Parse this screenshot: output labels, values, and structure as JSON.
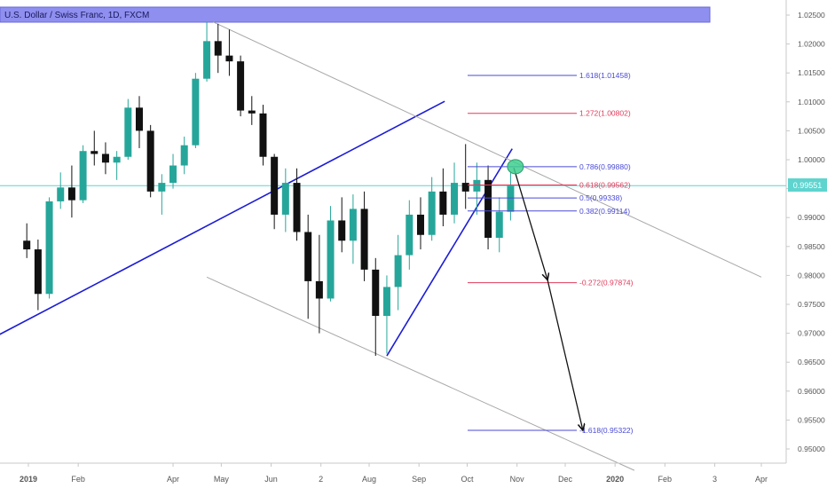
{
  "chart_data": {
    "type": "candlestick",
    "title": "U.S. Dollar / Swiss Franc, 1D, FXCM",
    "current_price": "0.99551",
    "y_ticks": [
      "1.02500",
      "1.02000",
      "1.01500",
      "1.01000",
      "1.00500",
      "1.00000",
      "0.99500",
      "0.99000",
      "0.98500",
      "0.98000",
      "0.97500",
      "0.97000",
      "0.96500",
      "0.96000",
      "0.95500",
      "0.95000"
    ],
    "x_ticks": [
      {
        "label": "2019",
        "date": "2019-01-01"
      },
      {
        "label": "Feb",
        "date": "2019-02-01"
      },
      {
        "label": "Apr",
        "date": "2019-04-01"
      },
      {
        "label": "May",
        "date": "2019-05-01"
      },
      {
        "label": "Jun",
        "date": "2019-06-01"
      },
      {
        "label": "2",
        "date": "2019-07-02"
      },
      {
        "label": "Aug",
        "date": "2019-08-01"
      },
      {
        "label": "Sep",
        "date": "2019-09-01"
      },
      {
        "label": "Oct",
        "date": "2019-10-01"
      },
      {
        "label": "Nov",
        "date": "2019-11-01"
      },
      {
        "label": "Dec",
        "date": "2019-12-01"
      },
      {
        "label": "2020",
        "date": "2020-01-01"
      },
      {
        "label": "Feb",
        "date": "2020-02-01"
      },
      {
        "label": "3",
        "date": "2020-03-03"
      },
      {
        "label": "Apr",
        "date": "2020-04-01"
      }
    ],
    "fib_levels": [
      {
        "label": "1.618(1.01458)",
        "value": 1.01458,
        "color": "#4a4ad6"
      },
      {
        "label": "1.272(1.00802)",
        "value": 1.00802,
        "color": "#e03a5a"
      },
      {
        "label": "0.786(0.99880)",
        "value": 0.9988,
        "color": "#4a4ad6"
      },
      {
        "label": "0.618(0.99562)",
        "value": 0.99562,
        "color": "#e03a5a"
      },
      {
        "label": "0.5(0.99338)",
        "value": 0.99338,
        "color": "#4a4ad6"
      },
      {
        "label": "0.382(0.99114)",
        "value": 0.99114,
        "color": "#4a4ad6"
      },
      {
        "label": "-0.272(0.97874)",
        "value": 0.97874,
        "color": "#e03a5a"
      },
      {
        "label": "-1.618(0.95322)",
        "value": 0.95322,
        "color": "#4a4ad6"
      }
    ],
    "trendlines": [
      {
        "name": "long-uptrend",
        "color": "#1c1cd6",
        "from": {
          "date": "2018-12-10",
          "price": 0.9692
        },
        "to": {
          "date": "2019-09-17",
          "price": 1.0101
        }
      },
      {
        "name": "aug-oct-uptrend",
        "color": "#1c1cd6",
        "from": {
          "date": "2019-08-12",
          "price": 0.9661
        },
        "to": {
          "date": "2019-10-29",
          "price": 1.0019
        }
      },
      {
        "name": "channel-upper",
        "color": "#a8a8a8",
        "from": {
          "date": "2019-04-26",
          "price": 1.0238
        },
        "to": {
          "date": "2020-04-01",
          "price": 0.9797
        }
      },
      {
        "name": "channel-lower",
        "color": "#a8a8a8",
        "from": {
          "date": "2019-04-22",
          "price": 0.9797
        },
        "to": {
          "date": "2020-01-13",
          "price": 0.9463
        }
      }
    ],
    "projection_arrows": [
      {
        "from": {
          "date": "2019-10-30",
          "price": 0.9986
        },
        "to": {
          "date": "2019-11-20",
          "price": 0.9792
        }
      },
      {
        "from": {
          "date": "2019-11-20",
          "price": 0.9792
        },
        "to": {
          "date": "2019-12-12",
          "price": 0.9532
        }
      }
    ],
    "candles": [
      {
        "date": "2018-12-31",
        "open": 0.986,
        "high": 0.989,
        "low": 0.983,
        "close": 0.9845
      },
      {
        "date": "2019-01-07",
        "open": 0.9845,
        "high": 0.9862,
        "low": 0.974,
        "close": 0.9768
      },
      {
        "date": "2019-01-14",
        "open": 0.9768,
        "high": 0.9935,
        "low": 0.976,
        "close": 0.9928
      },
      {
        "date": "2019-01-21",
        "open": 0.9928,
        "high": 0.9978,
        "low": 0.9915,
        "close": 0.9952
      },
      {
        "date": "2019-01-28",
        "open": 0.9952,
        "high": 0.999,
        "low": 0.99,
        "close": 0.993
      },
      {
        "date": "2019-02-04",
        "open": 0.993,
        "high": 1.0025,
        "low": 0.9925,
        "close": 1.0015
      },
      {
        "date": "2019-02-11",
        "open": 1.0015,
        "high": 1.005,
        "low": 0.999,
        "close": 1.001
      },
      {
        "date": "2019-02-18",
        "open": 1.001,
        "high": 1.003,
        "low": 0.9975,
        "close": 0.9995
      },
      {
        "date": "2019-02-25",
        "open": 0.9995,
        "high": 1.0015,
        "low": 0.9965,
        "close": 1.0005
      },
      {
        "date": "2019-03-04",
        "open": 1.0005,
        "high": 1.0105,
        "low": 1.0,
        "close": 1.009
      },
      {
        "date": "2019-03-11",
        "open": 1.009,
        "high": 1.011,
        "low": 1.002,
        "close": 1.005
      },
      {
        "date": "2019-03-18",
        "open": 1.005,
        "high": 1.006,
        "low": 0.9935,
        "close": 0.9945
      },
      {
        "date": "2019-03-25",
        "open": 0.9945,
        "high": 0.9975,
        "low": 0.9905,
        "close": 0.996
      },
      {
        "date": "2019-04-01",
        "open": 0.996,
        "high": 1.001,
        "low": 0.995,
        "close": 0.999
      },
      {
        "date": "2019-04-08",
        "open": 0.999,
        "high": 1.004,
        "low": 0.9975,
        "close": 1.0025
      },
      {
        "date": "2019-04-15",
        "open": 1.0025,
        "high": 1.015,
        "low": 1.002,
        "close": 1.014
      },
      {
        "date": "2019-04-22",
        "open": 1.014,
        "high": 1.0238,
        "low": 1.0135,
        "close": 1.0205
      },
      {
        "date": "2019-04-29",
        "open": 1.0205,
        "high": 1.0235,
        "low": 1.015,
        "close": 1.018
      },
      {
        "date": "2019-05-06",
        "open": 1.018,
        "high": 1.0225,
        "low": 1.0145,
        "close": 1.017
      },
      {
        "date": "2019-05-13",
        "open": 1.017,
        "high": 1.018,
        "low": 1.0075,
        "close": 1.0085
      },
      {
        "date": "2019-05-20",
        "open": 1.0085,
        "high": 1.011,
        "low": 1.006,
        "close": 1.008
      },
      {
        "date": "2019-05-27",
        "open": 1.008,
        "high": 1.0095,
        "low": 0.999,
        "close": 1.0005
      },
      {
        "date": "2019-06-03",
        "open": 1.0005,
        "high": 1.001,
        "low": 0.988,
        "close": 0.9905
      },
      {
        "date": "2019-06-10",
        "open": 0.9905,
        "high": 0.9985,
        "low": 0.9875,
        "close": 0.996
      },
      {
        "date": "2019-06-17",
        "open": 0.996,
        "high": 0.9985,
        "low": 0.986,
        "close": 0.9875
      },
      {
        "date": "2019-06-24",
        "open": 0.9875,
        "high": 0.9905,
        "low": 0.9725,
        "close": 0.979
      },
      {
        "date": "2019-07-01",
        "open": 0.979,
        "high": 0.987,
        "low": 0.97,
        "close": 0.976
      },
      {
        "date": "2019-07-08",
        "open": 0.976,
        "high": 0.992,
        "low": 0.9755,
        "close": 0.9895
      },
      {
        "date": "2019-07-15",
        "open": 0.9895,
        "high": 0.9935,
        "low": 0.984,
        "close": 0.986
      },
      {
        "date": "2019-07-22",
        "open": 0.986,
        "high": 0.994,
        "low": 0.982,
        "close": 0.9915
      },
      {
        "date": "2019-07-29",
        "open": 0.9915,
        "high": 0.9945,
        "low": 0.979,
        "close": 0.981
      },
      {
        "date": "2019-08-05",
        "open": 0.981,
        "high": 0.983,
        "low": 0.9661,
        "close": 0.973
      },
      {
        "date": "2019-08-12",
        "open": 0.973,
        "high": 0.98,
        "low": 0.9665,
        "close": 0.978
      },
      {
        "date": "2019-08-19",
        "open": 0.978,
        "high": 0.987,
        "low": 0.974,
        "close": 0.9835
      },
      {
        "date": "2019-08-26",
        "open": 0.9835,
        "high": 0.993,
        "low": 0.981,
        "close": 0.9905
      },
      {
        "date": "2019-09-02",
        "open": 0.9905,
        "high": 0.9935,
        "low": 0.9845,
        "close": 0.987
      },
      {
        "date": "2019-09-09",
        "open": 0.987,
        "high": 0.997,
        "low": 0.986,
        "close": 0.9945
      },
      {
        "date": "2019-09-16",
        "open": 0.9945,
        "high": 0.9985,
        "low": 0.9885,
        "close": 0.9905
      },
      {
        "date": "2019-09-23",
        "open": 0.9905,
        "high": 0.9995,
        "low": 0.989,
        "close": 0.996
      },
      {
        "date": "2019-09-30",
        "open": 0.996,
        "high": 1.0027,
        "low": 0.9915,
        "close": 0.9945
      },
      {
        "date": "2019-10-07",
        "open": 0.9945,
        "high": 0.9995,
        "low": 0.9905,
        "close": 0.9965
      },
      {
        "date": "2019-10-14",
        "open": 0.9965,
        "high": 0.999,
        "low": 0.9845,
        "close": 0.9865
      },
      {
        "date": "2019-10-21",
        "open": 0.9865,
        "high": 0.9935,
        "low": 0.984,
        "close": 0.991
      },
      {
        "date": "2019-10-28",
        "open": 0.991,
        "high": 0.998,
        "low": 0.9895,
        "close": 0.9955
      }
    ]
  },
  "colors": {
    "up": "#26a69a",
    "down": "#111111",
    "title_band": "#8f8ff0",
    "price_line": "#5fd4cf",
    "marker": "#3ecf8e",
    "axis_text": "#555555"
  }
}
